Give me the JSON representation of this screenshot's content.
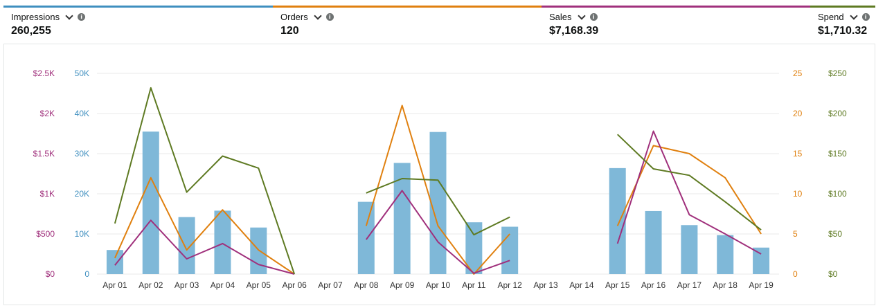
{
  "metrics": [
    {
      "label": "Impressions",
      "value": "260,255",
      "color": "#3f8fbf"
    },
    {
      "label": "Orders",
      "value": "120",
      "color": "#e0800f"
    },
    {
      "label": "Sales",
      "value": "$7,168.39",
      "color": "#a0307c"
    },
    {
      "label": "Spend",
      "value": "$1,710.32",
      "color": "#5e7a22"
    }
  ],
  "chart_data": {
    "type": "bar",
    "categories": [
      "Apr 01",
      "Apr 02",
      "Apr 03",
      "Apr 04",
      "Apr 05",
      "Apr 06",
      "Apr 07",
      "Apr 08",
      "Apr 09",
      "Apr 10",
      "Apr 11",
      "Apr 12",
      "Apr 13",
      "Apr 14",
      "Apr 15",
      "Apr 16",
      "Apr 17",
      "Apr 18",
      "Apr 19"
    ],
    "series": [
      {
        "name": "Impressions",
        "type": "bar",
        "axis": "impressions",
        "color": "#7fb8d8",
        "values": [
          6000,
          35500,
          14200,
          15800,
          11600,
          0,
          null,
          18000,
          27700,
          35400,
          12900,
          11800,
          null,
          null,
          26400,
          15700,
          12200,
          9700,
          6600
        ]
      },
      {
        "name": "Orders",
        "type": "line",
        "axis": "orders",
        "color": "#e0800f",
        "values": [
          2,
          12,
          3,
          8,
          3,
          0,
          null,
          6,
          21,
          6,
          0,
          5,
          null,
          null,
          6,
          16,
          15,
          12,
          5
        ]
      },
      {
        "name": "Sales",
        "type": "line",
        "axis": "sales",
        "color": "#a0307c",
        "values": [
          110,
          670,
          190,
          380,
          120,
          0,
          null,
          430,
          1040,
          400,
          10,
          170,
          null,
          null,
          380,
          1780,
          740,
          500,
          250
        ]
      },
      {
        "name": "Spend",
        "type": "line",
        "axis": "spend",
        "color": "#5e7a22",
        "values": [
          63,
          232,
          102,
          147,
          132,
          0,
          null,
          101,
          119,
          117,
          49,
          71,
          null,
          null,
          174,
          131,
          123,
          90,
          55
        ]
      }
    ],
    "axes": {
      "sales": {
        "ticks": [
          "$0",
          "$500",
          "$1K",
          "$1.5K",
          "$2K",
          "$2.5K"
        ],
        "range": [
          0,
          2500
        ],
        "color": "#a0307c"
      },
      "impressions": {
        "ticks": [
          "0",
          "10K",
          "20K",
          "30K",
          "40K",
          "50K"
        ],
        "range": [
          0,
          50000
        ],
        "color": "#3f8fbf"
      },
      "orders": {
        "ticks": [
          "0",
          "5",
          "10",
          "15",
          "20",
          "25"
        ],
        "range": [
          0,
          25
        ],
        "color": "#e0800f"
      },
      "spend": {
        "ticks": [
          "$0",
          "$50",
          "$100",
          "$150",
          "$200",
          "$250"
        ],
        "range": [
          0,
          250
        ],
        "color": "#5e7a22"
      }
    },
    "grid": true,
    "xlabel": "",
    "ylabel": ""
  }
}
